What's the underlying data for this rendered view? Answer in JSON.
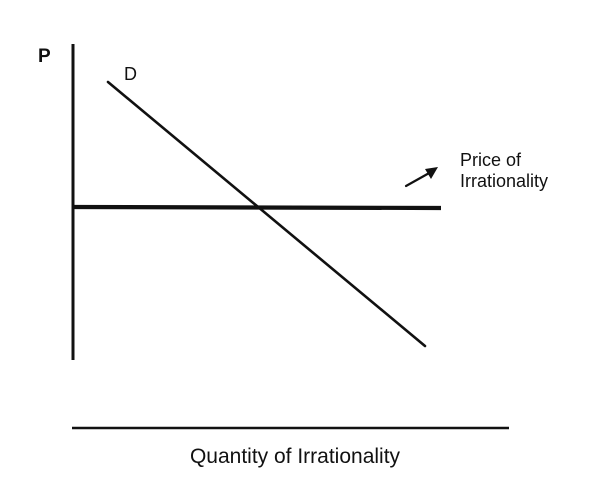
{
  "axis_labels": {
    "y": "P",
    "x": "Quantity of Irrationality"
  },
  "curves": {
    "demand": "D",
    "price_line_lines": [
      "Price of",
      "Irrationality"
    ]
  },
  "colors": {
    "ink": "#111111",
    "background": "#ffffff"
  },
  "annotation_arrow": "arrow-up-right-icon"
}
